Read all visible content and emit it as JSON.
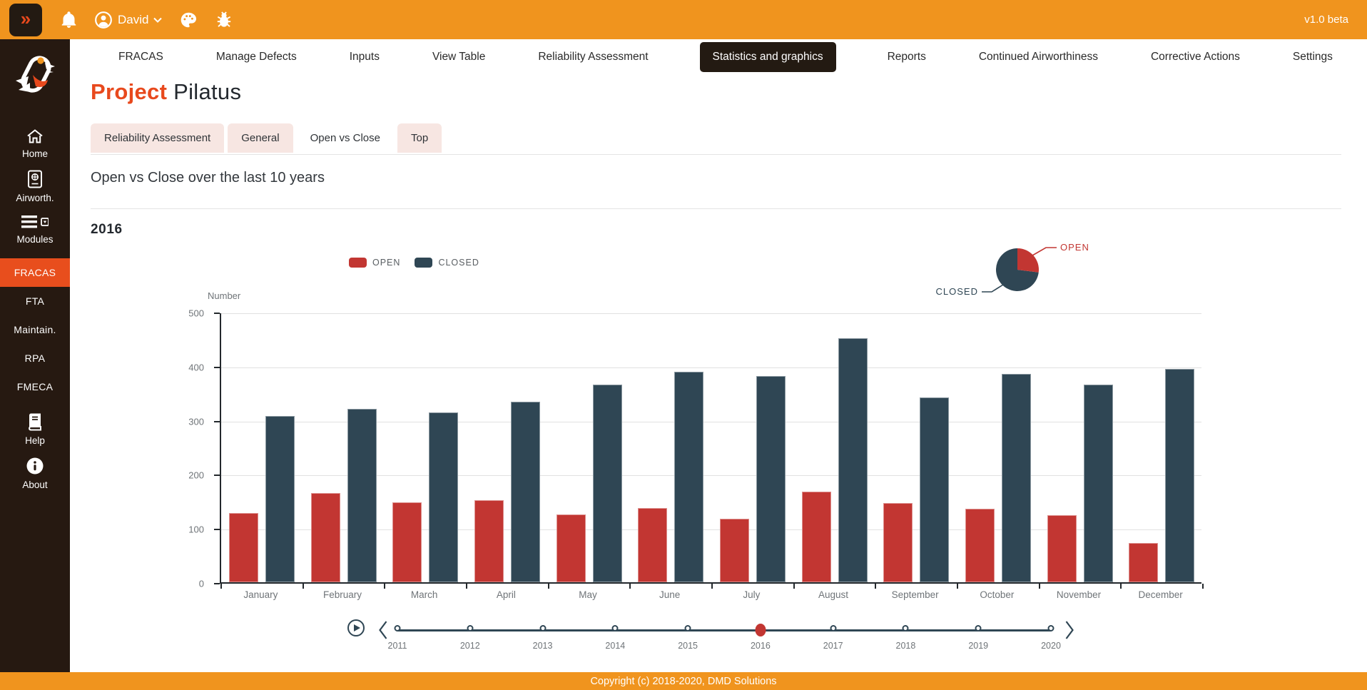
{
  "topbar": {
    "toggle_glyph": "»",
    "user_name": "David",
    "version_label": "v1.0 beta"
  },
  "nav": {
    "items": [
      "FRACAS",
      "Manage Defects",
      "Inputs",
      "View Table",
      "Reliability Assessment",
      "Statistics and graphics",
      "Reports",
      "Continued Airworthiness",
      "Corrective Actions",
      "Settings"
    ],
    "active": "Statistics and graphics"
  },
  "sidebar": {
    "home_label": "Home",
    "airworthiness_label": "Airworth.",
    "modules_label": "Modules",
    "module_links": [
      "FRACAS",
      "FTA",
      "Maintain.",
      "RPA",
      "FMECA"
    ],
    "active_module": "FRACAS",
    "help_label": "Help",
    "about_label": "About"
  },
  "page": {
    "title_accent": "Project",
    "title_rest": "Pilatus"
  },
  "tabs": {
    "items": [
      "Reliability Assessment",
      "General",
      "Open vs Close",
      "Top"
    ],
    "active": "Open vs Close"
  },
  "section": {
    "heading": "Open vs Close over the last 10 years",
    "year_label": "2016"
  },
  "chart_data": {
    "type": "bar",
    "title": "Open vs Close over the last 10 years",
    "current_year": "2016",
    "categories": [
      "January",
      "February",
      "March",
      "April",
      "May",
      "June",
      "July",
      "August",
      "September",
      "October",
      "November",
      "December"
    ],
    "series": [
      {
        "name": "OPEN",
        "color": "#C23632",
        "values": [
          128,
          165,
          148,
          152,
          125,
          137,
          117,
          167,
          146,
          136,
          124,
          73
        ]
      },
      {
        "name": "CLOSED",
        "color": "#2F4654",
        "values": [
          308,
          321,
          314,
          334,
          365,
          389,
          381,
          451,
          342,
          385,
          365,
          394
        ]
      }
    ],
    "xlabel": "",
    "ylabel": "Number",
    "ylim": [
      0,
      500
    ],
    "yticks": [
      0,
      100,
      200,
      300,
      400,
      500
    ],
    "grid": true,
    "legend_position": "top",
    "pie": {
      "type": "pie",
      "labels": [
        "OPEN",
        "CLOSED"
      ],
      "percentages": [
        27,
        73
      ],
      "colors": [
        "#C23632",
        "#2F4654"
      ]
    }
  },
  "timeline": {
    "years": [
      "2011",
      "2012",
      "2013",
      "2014",
      "2015",
      "2016",
      "2017",
      "2018",
      "2019",
      "2020"
    ],
    "selected": "2016"
  },
  "footer": {
    "copyright": "Copyright (c) 2018-2020, DMD Solutions"
  },
  "colors": {
    "brand_orange": "#F0941E",
    "accent_red": "#E8491D",
    "sidebar_bg": "#261911",
    "open_red": "#C23632",
    "closed_slate": "#2F4654"
  }
}
